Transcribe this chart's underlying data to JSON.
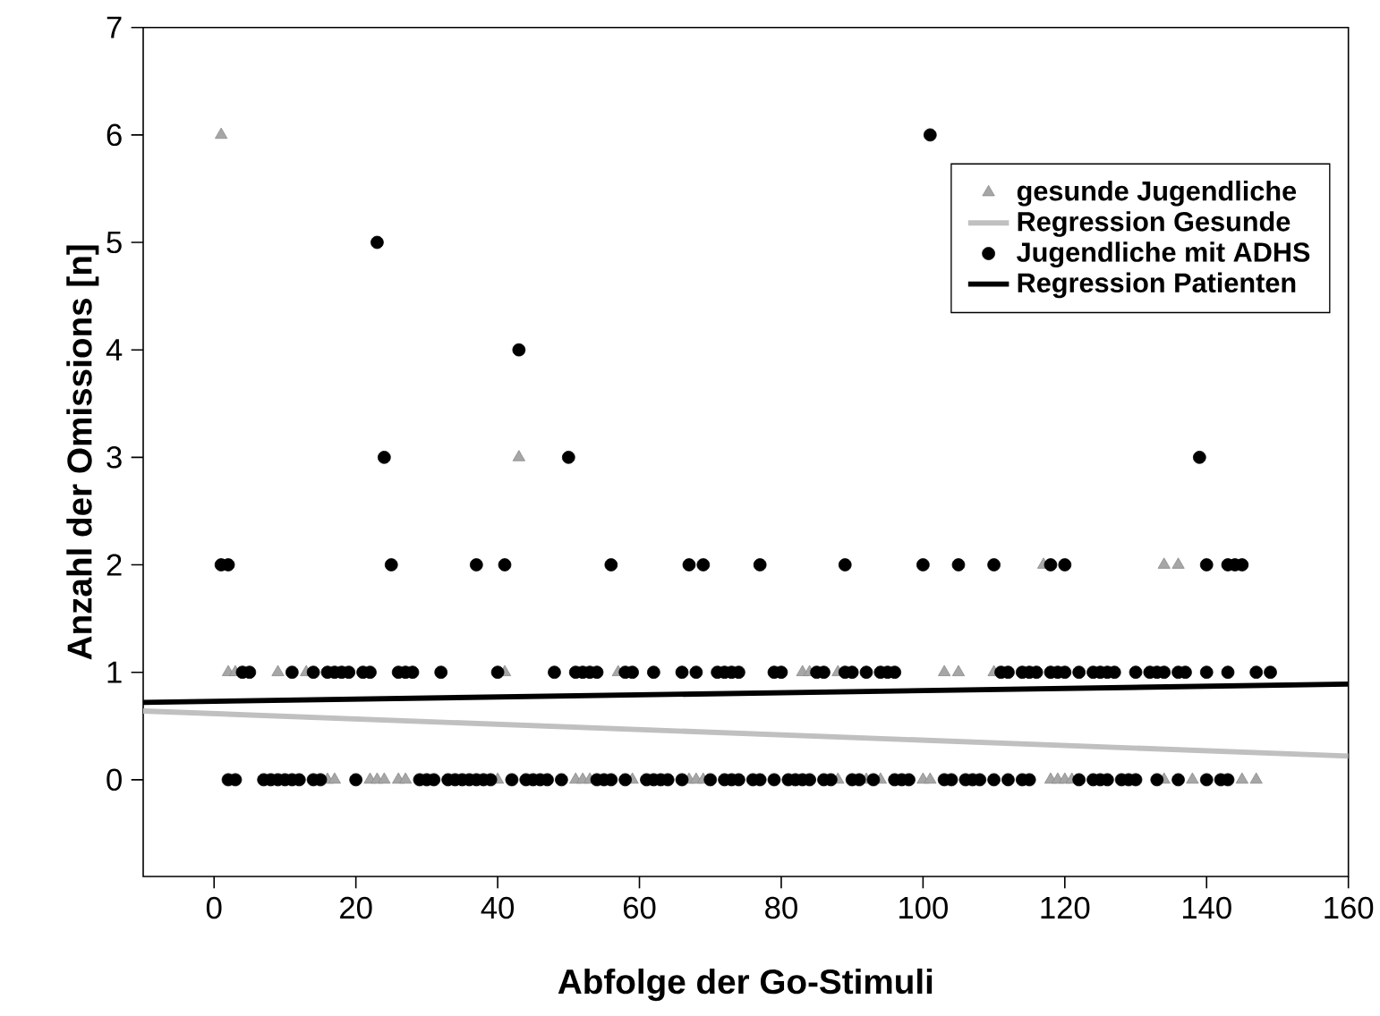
{
  "chart_data": {
    "type": "scatter",
    "xlabel": "Abfolge der Go-Stimuli",
    "ylabel": "Anzahl der Omissions [n]",
    "xlim": [
      -10,
      160
    ],
    "ylim": [
      -0.9,
      7
    ],
    "xticks": [
      0,
      20,
      40,
      60,
      80,
      100,
      120,
      140,
      160
    ],
    "yticks": [
      0,
      1,
      2,
      3,
      4,
      5,
      6,
      7
    ],
    "legend": "right",
    "grid": false,
    "series": [
      {
        "name": "gesunde Jugendliche",
        "marker": "triangle",
        "color": "#a6a6a6",
        "x": [
          1,
          43,
          117,
          134,
          136,
          2,
          3,
          9,
          13,
          20,
          41,
          57,
          83,
          84,
          88,
          103,
          105,
          110,
          16,
          17,
          22,
          23,
          24,
          26,
          27,
          40,
          51,
          52,
          53,
          59,
          67,
          68,
          69,
          88,
          92,
          94,
          100,
          101,
          118,
          119,
          120,
          121,
          134,
          138,
          145,
          147
        ],
        "values": [
          6,
          3,
          2,
          2,
          2,
          1,
          1,
          1,
          1,
          null,
          1,
          1,
          1,
          1,
          1,
          1,
          1,
          1,
          0,
          0,
          0,
          0,
          0,
          0,
          0,
          0,
          0,
          0,
          0,
          0,
          0,
          0,
          0,
          0,
          0,
          0,
          0,
          0,
          0,
          0,
          0,
          0,
          0,
          0,
          0,
          0
        ]
      },
      {
        "name": "Regression Gesunde",
        "type": "line",
        "marker": "none",
        "color": "#c0c0c0",
        "x": [
          -10,
          160
        ],
        "values": [
          0.64,
          0.22
        ]
      },
      {
        "name": "Jugendliche mit ADHS",
        "marker": "circle",
        "color": "#000000",
        "x": [
          101,
          23,
          43,
          24,
          50,
          139,
          1,
          2,
          25,
          37,
          41,
          56,
          67,
          69,
          77,
          89,
          100,
          105,
          110,
          118,
          120,
          140,
          143,
          144,
          145,
          4,
          5,
          11,
          14,
          16,
          17,
          18,
          19,
          21,
          22,
          26,
          27,
          28,
          32,
          40,
          48,
          51,
          52,
          53,
          54,
          58,
          59,
          62,
          66,
          68,
          71,
          72,
          73,
          74,
          79,
          80,
          85,
          86,
          89,
          90,
          92,
          94,
          95,
          96,
          111,
          112,
          114,
          115,
          116,
          118,
          119,
          120,
          122,
          124,
          125,
          126,
          127,
          130,
          132,
          133,
          134,
          136,
          137,
          140,
          143,
          147,
          149,
          2,
          3,
          7,
          8,
          9,
          10,
          11,
          12,
          14,
          15,
          20,
          29,
          30,
          31,
          33,
          34,
          35,
          36,
          37,
          38,
          39,
          42,
          44,
          45,
          46,
          47,
          49,
          54,
          55,
          56,
          58,
          61,
          62,
          63,
          64,
          66,
          70,
          72,
          73,
          74,
          76,
          77,
          79,
          81,
          82,
          83,
          84,
          86,
          87,
          90,
          91,
          93,
          96,
          97,
          98,
          103,
          104,
          106,
          107,
          108,
          110,
          112,
          114,
          115,
          122,
          124,
          125,
          126,
          128,
          129,
          130,
          133,
          136,
          140,
          142,
          143
        ],
        "values": [
          6,
          5,
          4,
          3,
          3,
          3,
          2,
          2,
          2,
          2,
          2,
          2,
          2,
          2,
          2,
          2,
          2,
          2,
          2,
          2,
          2,
          2,
          2,
          2,
          2,
          1,
          1,
          1,
          1,
          1,
          1,
          1,
          1,
          1,
          1,
          1,
          1,
          1,
          1,
          1,
          1,
          1,
          1,
          1,
          1,
          1,
          1,
          1,
          1,
          1,
          1,
          1,
          1,
          1,
          1,
          1,
          1,
          1,
          1,
          1,
          1,
          1,
          1,
          1,
          1,
          1,
          1,
          1,
          1,
          1,
          1,
          1,
          1,
          1,
          1,
          1,
          1,
          1,
          1,
          1,
          1,
          1,
          1,
          1,
          1,
          1,
          1,
          0,
          0,
          0,
          0,
          0,
          0,
          0,
          0,
          0,
          0,
          0,
          0,
          0,
          0,
          0,
          0,
          0,
          0,
          0,
          0,
          0,
          0,
          0,
          0,
          0,
          0,
          0,
          0,
          0,
          0,
          0,
          0,
          0,
          0,
          0,
          0,
          0,
          0,
          0,
          0,
          0,
          0,
          0,
          0,
          0,
          0,
          0,
          0,
          0,
          0,
          0,
          0,
          0,
          0,
          0,
          0,
          0,
          0,
          0,
          0,
          0,
          0,
          0,
          0,
          0,
          0,
          0,
          0,
          0,
          0,
          0,
          0,
          0,
          0,
          0,
          0
        ]
      },
      {
        "name": "Regression Patienten",
        "type": "line",
        "marker": "none",
        "color": "#000000",
        "x": [
          -10,
          160
        ],
        "values": [
          0.72,
          0.89
        ]
      }
    ]
  }
}
